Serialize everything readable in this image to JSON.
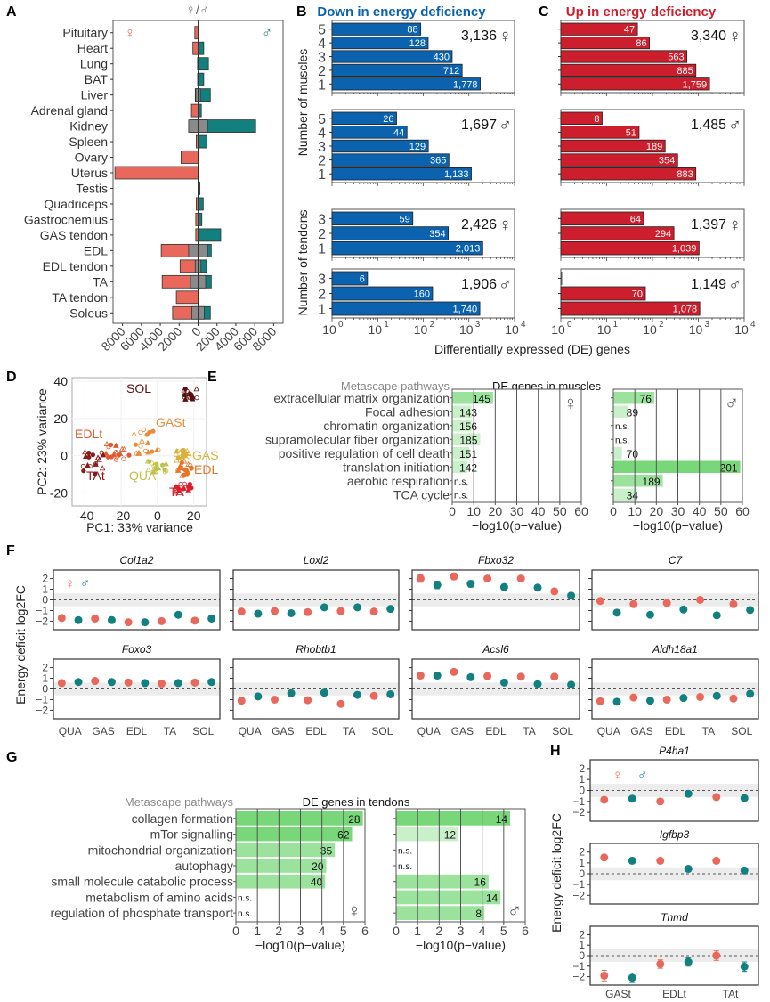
{
  "colors": {
    "female": "#e8695c",
    "male": "#11807e",
    "overlap": "#8a8a8a",
    "down": "#0b63b0",
    "up": "#cc1e2c",
    "green_strong": "#78d879",
    "green_mid": "#9be39c",
    "green_light": "#c9f0c9",
    "sol": "#5a0f10",
    "edlt": "#e05a2f",
    "tat": "#8c1a1a",
    "gast": "#e88b3a",
    "gas": "#d9b23a",
    "edl": "#e8742a",
    "qua": "#c0c04a",
    "ta": "#d6202a"
  },
  "symbols": {
    "female": "♀",
    "male": "♂",
    "female_male": "♀/♂"
  },
  "chart_data": [
    {
      "id": "A",
      "type": "bar",
      "panel_label": "A",
      "title": "♀/♂",
      "orientation": "horizontal-diverging",
      "categories": [
        "Pituitary",
        "Heart",
        "Lung",
        "BAT",
        "Liver",
        "Adrenal gland",
        "Kidney",
        "Spleen",
        "Ovary",
        "Uterus",
        "Testis",
        "Quadriceps",
        "Gastrocnemius",
        "GAS tendon",
        "EDL",
        "EDL tendon",
        "TA",
        "TA tendon",
        "Soleus"
      ],
      "series": [
        {
          "name": "female",
          "values": [
            350,
            550,
            60,
            50,
            300,
            700,
            650,
            200,
            1800,
            8800,
            0,
            200,
            250,
            250,
            3900,
            1900,
            3800,
            2300,
            2700
          ]
        },
        {
          "name": "male",
          "values": [
            80,
            600,
            1100,
            600,
            1300,
            350,
            6100,
            950,
            0,
            0,
            200,
            550,
            400,
            2400,
            1400,
            900,
            1400,
            0,
            1300
          ]
        },
        {
          "name": "overlap",
          "values": [
            0,
            0,
            0,
            0,
            250,
            0,
            1000,
            0,
            0,
            0,
            0,
            0,
            0,
            0,
            1000,
            300,
            800,
            0,
            650
          ]
        }
      ],
      "xticks": [
        "8000",
        "6000",
        "4000",
        "2000",
        "0",
        "2000",
        "4000",
        "6000",
        "8000"
      ],
      "xlim": [
        -9000,
        9000
      ]
    },
    {
      "id": "B",
      "type": "bar",
      "panel_label": "B",
      "title": "Down in energy deficiency",
      "xscale": "log",
      "xlim": [
        1,
        10000
      ],
      "xticks": [
        "10^0",
        "10^1",
        "10^2",
        "10^3",
        "10^4"
      ],
      "facets": [
        {
          "group": "muscles",
          "sex": "female",
          "total": "3,136",
          "categories": [
            "5",
            "4",
            "3",
            "2",
            "1"
          ],
          "values": [
            88,
            128,
            430,
            712,
            1778
          ],
          "labels": [
            "88",
            "128",
            "430",
            "712",
            "1,778"
          ]
        },
        {
          "group": "muscles",
          "sex": "male",
          "total": "1,697",
          "categories": [
            "5",
            "4",
            "3",
            "2",
            "1"
          ],
          "values": [
            26,
            44,
            129,
            365,
            1133
          ],
          "labels": [
            "26",
            "44",
            "129",
            "365",
            "1,133"
          ]
        },
        {
          "group": "tendons",
          "sex": "female",
          "total": "2,426",
          "categories": [
            "3",
            "2",
            "1"
          ],
          "values": [
            59,
            354,
            2013
          ],
          "labels": [
            "59",
            "354",
            "2,013"
          ]
        },
        {
          "group": "tendons",
          "sex": "male",
          "total": "1,906",
          "categories": [
            "3",
            "2",
            "1"
          ],
          "values": [
            6,
            160,
            1740
          ],
          "labels": [
            "6",
            "160",
            "1,740"
          ]
        }
      ],
      "ylabel_muscles": "Number of muscles",
      "ylabel_tendons": "Number of tendons"
    },
    {
      "id": "C",
      "type": "bar",
      "panel_label": "C",
      "title": "Up in energy deficiency",
      "xscale": "log",
      "xlim": [
        1,
        10000
      ],
      "xticks": [
        "10^0",
        "10^1",
        "10^2",
        "10^3",
        "10^4"
      ],
      "facets": [
        {
          "group": "muscles",
          "sex": "female",
          "total": "3,340",
          "categories": [
            "5",
            "4",
            "3",
            "2",
            "1"
          ],
          "values": [
            47,
            86,
            563,
            885,
            1759
          ],
          "labels": [
            "47",
            "86",
            "563",
            "885",
            "1,759"
          ]
        },
        {
          "group": "muscles",
          "sex": "male",
          "total": "1,485",
          "categories": [
            "5",
            "4",
            "3",
            "2",
            "1"
          ],
          "values": [
            8,
            51,
            189,
            354,
            883
          ],
          "labels": [
            "8",
            "51",
            "189",
            "354",
            "883"
          ]
        },
        {
          "group": "tendons",
          "sex": "female",
          "total": "1,397",
          "categories": [
            "3",
            "2",
            "1"
          ],
          "values": [
            64,
            294,
            1039
          ],
          "labels": [
            "64",
            "294",
            "1,039"
          ]
        },
        {
          "group": "tendons",
          "sex": "male",
          "total": "1,149",
          "categories": [
            "3",
            "2",
            "1"
          ],
          "values": [
            1,
            70,
            1078
          ],
          "labels": [
            "",
            "70",
            "1,078"
          ]
        }
      ],
      "xlabel": "Differentially expressed (DE) genes"
    },
    {
      "id": "D",
      "type": "scatter",
      "panel_label": "D",
      "xlabel": "PC1: 33% variance",
      "ylabel": "PC2: 23% variance",
      "xlim": [
        -47,
        27
      ],
      "ylim": [
        -27,
        42
      ],
      "xticks": [
        -40,
        -20,
        0,
        20
      ],
      "yticks": [
        40,
        20,
        0,
        -20
      ],
      "groups": [
        {
          "name": "SOL",
          "color_key": "sol",
          "center": [
            18,
            33
          ],
          "spread": [
            4,
            3
          ]
        },
        {
          "name": "EDLt",
          "color_key": "edlt",
          "center": [
            -22,
            2
          ],
          "spread": [
            7,
            5
          ]
        },
        {
          "name": "TAt",
          "color_key": "tat",
          "center": [
            -35,
            -4
          ],
          "spread": [
            6,
            6
          ]
        },
        {
          "name": "GASt",
          "color_key": "gast",
          "center": [
            -5,
            8
          ],
          "spread": [
            8,
            7
          ]
        },
        {
          "name": "GAS",
          "color_key": "gas",
          "center": [
            14,
            0
          ],
          "spread": [
            4,
            3
          ]
        },
        {
          "name": "EDL",
          "color_key": "edl",
          "center": [
            15,
            -7
          ],
          "spread": [
            4,
            4
          ]
        },
        {
          "name": "QUA",
          "color_key": "qua",
          "center": [
            0,
            -5
          ],
          "spread": [
            6,
            4
          ]
        },
        {
          "name": "TA",
          "color_key": "ta",
          "center": [
            14,
            -18
          ],
          "spread": [
            5,
            3
          ]
        }
      ]
    },
    {
      "id": "E",
      "type": "bar",
      "panel_label": "E",
      "title": "DE genes in muscles",
      "header": "Metascape pathways",
      "categories": [
        "extracellular matrix organization",
        "Focal adhesion",
        "chromatin organization",
        "supramolecular fiber organization",
        "positive regulation of cell death",
        "translation initiation",
        "aerobic respiration",
        "TCA cycle"
      ],
      "xlabel": "−log10(p−value)",
      "xlim": [
        0,
        60
      ],
      "xticks": [
        0,
        10,
        20,
        30,
        40,
        50,
        60
      ],
      "series": [
        {
          "name": "female",
          "values": [
            19,
            9,
            9,
            13,
            8,
            7,
            0,
            0
          ],
          "labels": [
            "145",
            "143",
            "156",
            "185",
            "151",
            "142",
            "n.s.",
            "n.s."
          ]
        },
        {
          "name": "male",
          "values": [
            19,
            7,
            0,
            0,
            4,
            59,
            23,
            11
          ],
          "labels": [
            "76",
            "89",
            "n.s.",
            "n.s.",
            "70",
            "201",
            "189",
            "34"
          ]
        }
      ]
    },
    {
      "id": "F",
      "type": "scatter",
      "panel_label": "F",
      "ylabel": "Energy deficit log2FC",
      "ylim": [
        -2.8,
        2.8
      ],
      "yticks": [
        2,
        1,
        0,
        -1,
        -2
      ],
      "xticks": [
        "QUA",
        "GAS",
        "EDL",
        "TA",
        "SOL"
      ],
      "facets": [
        {
          "gene": "Col1a2",
          "values": [
            -1.7,
            -1.9,
            -1.75,
            -1.9,
            -2.1,
            -2.1,
            -2.0,
            -1.4,
            -1.95,
            -1.75
          ]
        },
        {
          "gene": "Loxl2",
          "values": [
            -1.1,
            -1.3,
            -1.05,
            -1.25,
            -1.15,
            -0.7,
            -1.05,
            -0.7,
            -1.1,
            -0.85
          ]
        },
        {
          "gene": "Fbxo32",
          "values": [
            2.0,
            1.4,
            2.2,
            1.5,
            2.0,
            1.2,
            2.0,
            1.15,
            0.8,
            0.4
          ]
        },
        {
          "gene": "C7",
          "values": [
            -0.1,
            -1.2,
            -0.4,
            -1.4,
            -0.3,
            -0.9,
            0.0,
            -1.45,
            -0.4,
            -0.95
          ]
        },
        {
          "gene": "Foxo3",
          "values": [
            0.55,
            0.65,
            0.75,
            0.65,
            0.6,
            0.55,
            0.5,
            0.55,
            0.6,
            0.65
          ]
        },
        {
          "gene": "Rhobtb1",
          "values": [
            -1.1,
            -0.7,
            -1.0,
            -0.4,
            -1.05,
            -0.35,
            -1.4,
            -0.55,
            -0.65,
            -0.5
          ]
        },
        {
          "gene": "Acsl6",
          "values": [
            1.25,
            1.25,
            1.6,
            1.1,
            1.2,
            0.6,
            1.15,
            0.45,
            1.15,
            0.4
          ]
        },
        {
          "gene": "Aldh18a1",
          "values": [
            -1.15,
            -1.2,
            -0.8,
            -1.1,
            -1.0,
            -0.85,
            -0.75,
            -0.65,
            -0.9,
            -0.45
          ]
        }
      ],
      "series_order": [
        "female",
        "male",
        "female",
        "male",
        "female",
        "male",
        "female",
        "male",
        "female",
        "male"
      ]
    },
    {
      "id": "G",
      "type": "bar",
      "panel_label": "G",
      "title": "DE genes in tendons",
      "header": "Metascape pathways",
      "categories": [
        "collagen formation",
        "mTor signalling",
        "mitochondrial organization",
        "autophagy",
        "small molecule catabolic process",
        "metabolism of amino acids",
        "regulation of phosphate transport"
      ],
      "xlabel": "−log10(p−value)",
      "xlim": [
        0,
        6
      ],
      "xticks": [
        0,
        1,
        2,
        3,
        4,
        5,
        6
      ],
      "series": [
        {
          "name": "female",
          "values": [
            5.9,
            5.4,
            4.6,
            4.2,
            4.15,
            0,
            0
          ],
          "labels": [
            "28",
            "62",
            "35",
            "20",
            "40",
            "n.s.",
            "n.s."
          ]
        },
        {
          "name": "male",
          "values": [
            5.3,
            2.9,
            0,
            0,
            4.3,
            4.85,
            4.1
          ],
          "labels": [
            "14",
            "12",
            "n.s.",
            "n.s.",
            "16",
            "14",
            "8"
          ]
        }
      ]
    },
    {
      "id": "H",
      "type": "scatter",
      "panel_label": "H",
      "ylabel": "Energy deficit log2FC",
      "ylim": [
        -2.8,
        2.8
      ],
      "yticks": [
        2,
        1,
        0,
        -1,
        -2
      ],
      "xticks": [
        "GASt",
        "EDLt",
        "TAt"
      ],
      "facets": [
        {
          "gene": "P4ha1",
          "values": [
            -0.85,
            -0.75,
            -1.0,
            -0.3,
            -0.6,
            -0.7
          ]
        },
        {
          "gene": "Igfbp3",
          "values": [
            1.5,
            1.2,
            1.2,
            0.45,
            1.2,
            0.3
          ]
        },
        {
          "gene": "Tnmd",
          "values": [
            -1.9,
            -2.1,
            -0.8,
            -0.6,
            0.0,
            -1.05
          ]
        }
      ],
      "series_order": [
        "female",
        "male",
        "female",
        "male",
        "female",
        "male"
      ]
    }
  ]
}
